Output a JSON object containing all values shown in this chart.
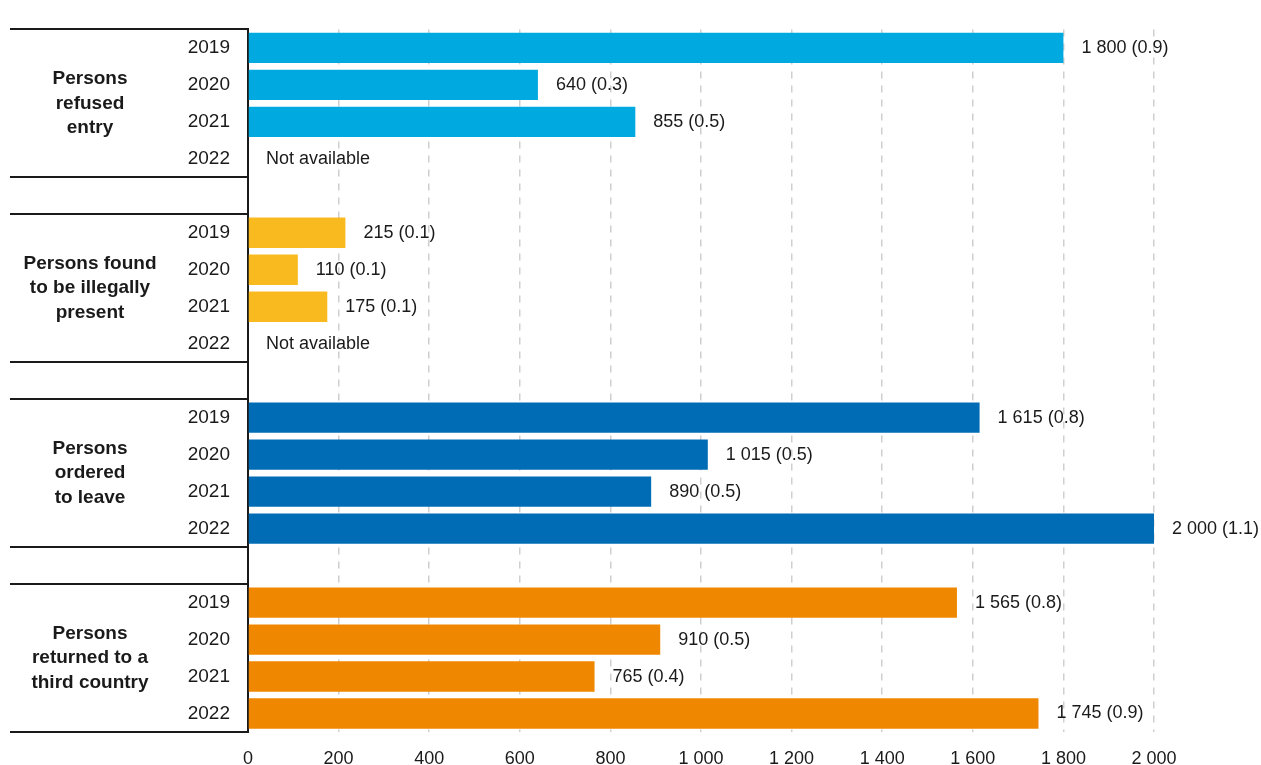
{
  "chart_data": {
    "type": "bar",
    "orientation": "horizontal",
    "categories": [
      "2019",
      "2020",
      "2021",
      "2022",
      null,
      "2019",
      "2020",
      "2021",
      "2022",
      null,
      "2019",
      "2020",
      "2021",
      "2022",
      null,
      "2019",
      "2020",
      "2021",
      "2022"
    ],
    "series": [
      {
        "color": "#00aae1",
        "values": [
          1800,
          640,
          855,
          null,
          null,
          null,
          null,
          null,
          null,
          null,
          null,
          null,
          null,
          null,
          null,
          null,
          null,
          null,
          null
        ],
        "value_labels": [
          "1 800 (0.9)",
          "640 (0.3)",
          "855 (0.5)",
          "Not available",
          null,
          null,
          null,
          null,
          null,
          null,
          null,
          null,
          null,
          null,
          null,
          null,
          null,
          null,
          null
        ]
      },
      {
        "color": "#f9ba1f",
        "values": [
          null,
          null,
          null,
          null,
          null,
          215,
          110,
          175,
          null,
          null,
          null,
          null,
          null,
          null,
          null,
          null,
          null,
          null,
          null
        ],
        "value_labels": [
          null,
          null,
          null,
          null,
          null,
          "215 (0.1)",
          "110 (0.1)",
          "175 (0.1)",
          "Not available",
          null,
          null,
          null,
          null,
          null,
          null,
          null,
          null,
          null,
          null
        ]
      },
      {
        "color": "#006cb5",
        "values": [
          null,
          null,
          null,
          null,
          null,
          null,
          null,
          null,
          null,
          null,
          1615,
          1015,
          890,
          2000,
          null,
          null,
          null,
          null,
          null
        ],
        "value_labels": [
          null,
          null,
          null,
          null,
          null,
          null,
          null,
          null,
          null,
          null,
          "1 615 (0.8)",
          "1 015 (0.5)",
          "890 (0.5)",
          "2 000 (1.1)",
          null,
          null,
          null,
          null,
          null
        ]
      },
      {
        "color": "#f08700",
        "values": [
          null,
          null,
          null,
          null,
          null,
          null,
          null,
          null,
          null,
          null,
          null,
          null,
          null,
          null,
          null,
          1565,
          910,
          765,
          1745
        ],
        "value_labels": [
          null,
          null,
          null,
          null,
          null,
          null,
          null,
          null,
          null,
          null,
          null,
          null,
          null,
          null,
          null,
          "1 565 (0.8)",
          "910 (0.5)",
          "765 (0.4)",
          "1 745 (0.9)"
        ]
      }
    ],
    "annotations": [
      "Persons refused entry",
      "Persons found to be illegally present",
      "Persons ordered to leave",
      "Persons returned to a third country"
    ],
    "xlim": [
      0,
      2000
    ],
    "xticks": [
      0,
      200,
      400,
      600,
      800,
      {
        "value": 1000,
        "label": "1 000"
      },
      {
        "value": 1200,
        "label": "1 200"
      },
      {
        "value": 1400,
        "label": "1 400"
      },
      {
        "value": 1600,
        "label": "1 600"
      },
      {
        "value": 1800,
        "label": "1 800"
      },
      {
        "value": 2000,
        "label": "2 000"
      }
    ],
    "grid": "x"
  }
}
